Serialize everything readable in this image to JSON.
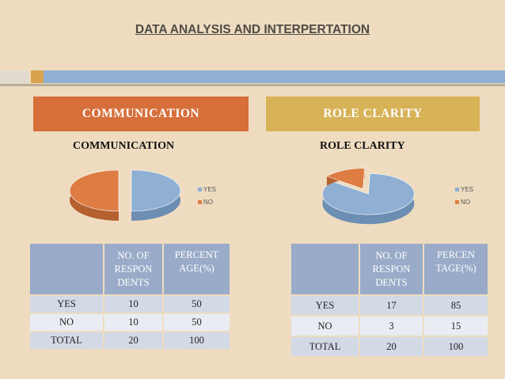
{
  "page": {
    "title": "DATA ANALYSIS AND INTERPERTATION"
  },
  "panels": [
    {
      "header": "COMMUNICATION",
      "chart_title": "COMMUNICATION",
      "legend": [
        "YES",
        "NO"
      ],
      "table": {
        "headers": [
          "",
          "NO. OF RESPON DENTS",
          "PERCENT AGE(%)"
        ],
        "header_lines": [
          [],
          [
            "NO. OF",
            "RESPON",
            "DENTS"
          ],
          [
            "PERCENT",
            "AGE(%)"
          ]
        ],
        "rows": [
          [
            "YES",
            "10",
            "50"
          ],
          [
            "NO",
            "10",
            "50"
          ],
          [
            "TOTAL",
            "20",
            "100"
          ]
        ]
      }
    },
    {
      "header": "ROLE CLARITY",
      "chart_title": "ROLE CLARITY",
      "legend": [
        "YES",
        "NO"
      ],
      "table": {
        "headers": [
          "",
          "NO. OF RESPON DENTS",
          "PERCEN TAGE(%)"
        ],
        "header_lines": [
          [],
          [
            "NO. OF",
            "RESPON",
            "DENTS"
          ],
          [
            "PERCEN",
            "TAGE(%)"
          ]
        ],
        "rows": [
          [
            "YES",
            "17",
            "85"
          ],
          [
            "NO",
            "3",
            "15"
          ],
          [
            "TOTAL",
            "20",
            "100"
          ]
        ]
      }
    }
  ],
  "colors": {
    "yes": "#8fb0d3",
    "no": "#de7d43"
  },
  "chart_data": [
    {
      "type": "pie",
      "title": "COMMUNICATION",
      "categories": [
        "YES",
        "NO"
      ],
      "values": [
        10,
        10
      ],
      "legend": "right"
    },
    {
      "type": "pie",
      "title": "ROLE CLARITY",
      "categories": [
        "YES",
        "NO"
      ],
      "values": [
        17,
        3
      ],
      "legend": "right"
    }
  ]
}
